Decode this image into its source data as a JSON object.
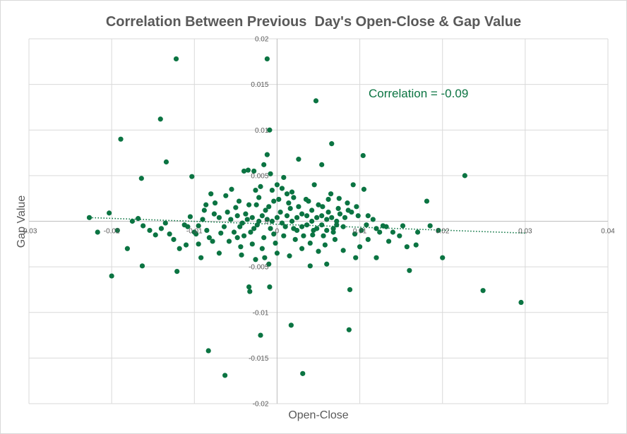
{
  "chart_data": {
    "type": "scatter",
    "title": "Correlation Between Previous  Day's Open-Close & Gap Value",
    "xlabel": "Open-Close",
    "ylabel": "Gap Value",
    "annotation": "Correlation = -0.09",
    "xlim": [
      -0.03,
      0.04
    ],
    "ylim": [
      -0.02,
      0.02
    ],
    "xticks": [
      -0.03,
      -0.02,
      -0.01,
      0,
      0.01,
      0.02,
      0.03,
      0.04
    ],
    "xtick_labels": [
      "-0.03",
      "-0.02",
      "-0.01",
      "0",
      "0.01",
      "0.02",
      "0.03",
      "0.04"
    ],
    "yticks": [
      -0.02,
      -0.015,
      -0.01,
      -0.005,
      0,
      0.005,
      0.01,
      0.015,
      0.02
    ],
    "ytick_labels": [
      "-0.02",
      "-0.015",
      "-0.01",
      "-0.005",
      "0",
      "0.005",
      "0.01",
      "0.015",
      "0.02"
    ],
    "grid": true,
    "trendline": {
      "type": "linear",
      "x": [
        -0.0227,
        0.03
      ],
      "y": [
        0.0004,
        -0.0013
      ]
    },
    "points": [
      [
        -0.0122,
        0.0178
      ],
      [
        -0.0012,
        0.0178
      ],
      [
        -0.0141,
        0.0112
      ],
      [
        -0.0189,
        0.009
      ],
      [
        -0.0134,
        0.0065
      ],
      [
        -0.0164,
        0.0047
      ],
      [
        -0.0103,
        0.0049
      ],
      [
        -0.0009,
        0.01
      ],
      [
        0.0047,
        0.0132
      ],
      [
        0.0066,
        0.0085
      ],
      [
        0.0104,
        0.0072
      ],
      [
        0.0054,
        0.0062
      ],
      [
        0.0227,
        0.005
      ],
      [
        0.0181,
        0.0022
      ],
      [
        -0.0227,
        0.0004
      ],
      [
        -0.0203,
        0.0009
      ],
      [
        -0.0217,
        -0.0012
      ],
      [
        -0.02,
        -0.006
      ],
      [
        -0.0193,
        -0.001
      ],
      [
        -0.0181,
        -0.003
      ],
      [
        -0.0163,
        -0.0049
      ],
      [
        -0.0121,
        -0.0055
      ],
      [
        -0.0083,
        -0.0142
      ],
      [
        -0.0063,
        -0.0169
      ],
      [
        -0.0034,
        -0.0072
      ],
      [
        -0.0033,
        -0.0077
      ],
      [
        -0.002,
        -0.0125
      ],
      [
        -0.0009,
        -0.0072
      ],
      [
        0.0017,
        -0.0114
      ],
      [
        0.0031,
        -0.0167
      ],
      [
        0.0087,
        -0.0119
      ],
      [
        0.0088,
        -0.0075
      ],
      [
        0.016,
        -0.0054
      ],
      [
        0.02,
        -0.004
      ],
      [
        0.0249,
        -0.0076
      ],
      [
        0.0295,
        -0.0089
      ],
      [
        0.0168,
        -0.0026
      ],
      [
        0.012,
        -0.004
      ],
      [
        0.0095,
        -0.004
      ],
      [
        0.006,
        -0.0047
      ],
      [
        0.004,
        -0.0049
      ],
      [
        -0.001,
        -0.0047
      ],
      [
        -0.0043,
        -0.0037
      ],
      [
        -0.007,
        -0.0035
      ],
      [
        -0.0092,
        -0.004
      ],
      [
        -0.011,
        -0.0026
      ],
      [
        -0.0147,
        -0.0015
      ],
      [
        -0.0162,
        -0.0005
      ],
      [
        -0.0168,
        0.0003
      ],
      [
        -0.0175,
        0.0
      ],
      [
        -0.0154,
        -0.001
      ],
      [
        -0.014,
        -0.0008
      ],
      [
        -0.0125,
        -0.002
      ],
      [
        -0.0118,
        -0.003
      ],
      [
        -0.01,
        -0.0012
      ],
      [
        -0.0095,
        -0.0025
      ],
      [
        -0.0088,
        0.0012
      ],
      [
        -0.008,
        0.003
      ],
      [
        -0.0075,
        0.002
      ],
      [
        -0.0062,
        0.0028
      ],
      [
        -0.0055,
        0.0035
      ],
      [
        -0.004,
        0.0055
      ],
      [
        -0.0035,
        0.0056
      ],
      [
        -0.0028,
        0.0055
      ],
      [
        -0.002,
        0.0038
      ],
      [
        -0.0016,
        0.0062
      ],
      [
        -0.0012,
        0.0073
      ],
      [
        -0.0008,
        0.0052
      ],
      [
        0.0,
        0.004
      ],
      [
        0.0008,
        0.0048
      ],
      [
        0.0012,
        0.003
      ],
      [
        0.002,
        0.0026
      ],
      [
        0.0026,
        0.0068
      ],
      [
        0.0035,
        0.0024
      ],
      [
        0.0045,
        0.004
      ],
      [
        0.0055,
        0.0016
      ],
      [
        0.0065,
        0.003
      ],
      [
        0.0075,
        0.0025
      ],
      [
        0.0085,
        0.002
      ],
      [
        0.0092,
        0.004
      ],
      [
        0.0105,
        0.0035
      ],
      [
        0.011,
        0.0006
      ],
      [
        0.012,
        -0.0008
      ],
      [
        0.0128,
        -0.0005
      ],
      [
        0.0135,
        -0.0022
      ],
      [
        0.014,
        -0.0012
      ],
      [
        0.0148,
        -0.0016
      ],
      [
        0.0152,
        -0.0005
      ],
      [
        0.0157,
        -0.0028
      ],
      [
        0.017,
        -0.0012
      ],
      [
        0.0185,
        -0.0005
      ],
      [
        0.0195,
        -0.001
      ],
      [
        0.011,
        -0.002
      ],
      [
        0.01,
        -0.0028
      ],
      [
        0.008,
        -0.0032
      ],
      [
        0.007,
        -0.002
      ],
      [
        0.005,
        -0.0033
      ],
      [
        0.003,
        -0.003
      ],
      [
        0.0015,
        -0.0038
      ],
      [
        0.0,
        -0.0035
      ],
      [
        -0.0015,
        -0.004
      ],
      [
        -0.003,
        -0.0025
      ],
      [
        -0.0048,
        -0.0018
      ],
      [
        -0.0058,
        -0.0022
      ],
      [
        -0.0068,
        -0.0013
      ],
      [
        -0.0078,
        -0.0022
      ],
      [
        -0.0085,
        -0.001
      ],
      [
        -0.0095,
        -0.0005
      ],
      [
        -0.0105,
        0.0005
      ],
      [
        -0.0112,
        -0.0004
      ],
      [
        -0.013,
        -0.0014
      ],
      [
        -0.0135,
        -0.0002
      ],
      [
        -0.0018,
        -0.003
      ],
      [
        -0.0026,
        -0.0042
      ],
      [
        0.0022,
        -0.002
      ],
      [
        0.0043,
        -0.0015
      ],
      [
        0.006,
        -0.001
      ],
      [
        0.0072,
        -0.0004
      ],
      [
        0.0082,
        0.0004
      ],
      [
        0.009,
        0.001
      ],
      [
        0.0098,
        0.0006
      ],
      [
        0.0102,
        -0.001
      ],
      [
        -0.006,
        0.001
      ],
      [
        -0.005,
        0.0015
      ],
      [
        -0.0045,
        -0.0006
      ],
      [
        -0.0038,
        0.0008
      ],
      [
        -0.0032,
        -0.0012
      ],
      [
        -0.0025,
        0.0018
      ],
      [
        -0.0022,
        0.0
      ],
      [
        -0.0014,
        0.0012
      ],
      [
        -0.0008,
        -0.0008
      ],
      [
        -0.0004,
        0.0022
      ],
      [
        0.0004,
        0.001
      ],
      [
        0.001,
        -0.0006
      ],
      [
        0.0016,
        0.0014
      ],
      [
        0.0024,
        -0.001
      ],
      [
        0.003,
        0.0008
      ],
      [
        0.0036,
        -0.0004
      ],
      [
        0.0042,
        0.0012
      ],
      [
        0.0048,
        -0.0008
      ],
      [
        0.0054,
        0.0006
      ],
      [
        0.0062,
        0.001
      ],
      [
        0.0068,
        -0.0008
      ],
      [
        0.0076,
        0.0008
      ],
      [
        -0.007,
        0.0004
      ],
      [
        -0.0064,
        -0.0006
      ],
      [
        -0.0056,
        0.0002
      ],
      [
        -0.0048,
        0.0006
      ],
      [
        -0.0042,
        -0.0002
      ],
      [
        -0.0036,
        0.0002
      ],
      [
        -0.003,
        0.0004
      ],
      [
        -0.0024,
        -0.0004
      ],
      [
        -0.0018,
        0.0006
      ],
      [
        -0.0012,
        0.0002
      ],
      [
        -0.0006,
        0.0
      ],
      [
        0.0,
        0.0004
      ],
      [
        0.0006,
        -0.0002
      ],
      [
        0.0012,
        0.0006
      ],
      [
        0.0018,
        0.0
      ],
      [
        0.0024,
        0.0004
      ],
      [
        0.003,
        -0.0006
      ],
      [
        0.0036,
        0.0006
      ],
      [
        0.0042,
        0.0
      ],
      [
        0.0048,
        0.0004
      ],
      [
        0.0054,
        -0.0004
      ],
      [
        0.006,
        0.0002
      ],
      [
        0.0066,
        0.0004
      ],
      [
        0.0072,
        0.0
      ],
      [
        -0.0052,
        -0.0012
      ],
      [
        -0.004,
        -0.0016
      ],
      [
        -0.0028,
        -0.0008
      ],
      [
        -0.0016,
        -0.0018
      ],
      [
        -0.0004,
        -0.0014
      ],
      [
        0.0008,
        -0.0016
      ],
      [
        0.002,
        -0.0008
      ],
      [
        0.0032,
        -0.0016
      ],
      [
        0.0044,
        -0.001
      ],
      [
        0.0056,
        -0.0016
      ],
      [
        0.0068,
        -0.0012
      ],
      [
        0.008,
        -0.0006
      ],
      [
        -0.0046,
        0.0022
      ],
      [
        -0.0034,
        0.0018
      ],
      [
        -0.0022,
        0.0026
      ],
      [
        -0.001,
        0.0016
      ],
      [
        0.0002,
        0.0024
      ],
      [
        0.0014,
        0.002
      ],
      [
        0.0026,
        0.0016
      ],
      [
        0.0038,
        0.0022
      ],
      [
        0.005,
        0.0018
      ],
      [
        0.0062,
        0.0024
      ],
      [
        0.0074,
        0.0014
      ],
      [
        0.0086,
        0.0012
      ],
      [
        -0.0006,
        0.0034
      ],
      [
        0.0006,
        0.0036
      ],
      [
        -0.0026,
        0.0034
      ],
      [
        0.0018,
        0.0032
      ],
      [
        -0.0044,
        -0.0028
      ],
      [
        -0.0002,
        -0.0024
      ],
      [
        0.004,
        -0.0024
      ],
      [
        0.0058,
        -0.0026
      ],
      [
        -0.0086,
        0.0018
      ],
      [
        -0.0082,
        -0.0018
      ],
      [
        -0.0076,
        0.0008
      ],
      [
        -0.009,
        0.0002
      ],
      [
        -0.0098,
        -0.0014
      ],
      [
        -0.0108,
        -0.0006
      ],
      [
        0.0094,
        -0.0014
      ],
      [
        0.0108,
        -0.0004
      ],
      [
        0.0116,
        0.0002
      ],
      [
        0.0124,
        -0.0012
      ],
      [
        0.0132,
        -0.0006
      ],
      [
        0.0096,
        0.0016
      ]
    ]
  }
}
